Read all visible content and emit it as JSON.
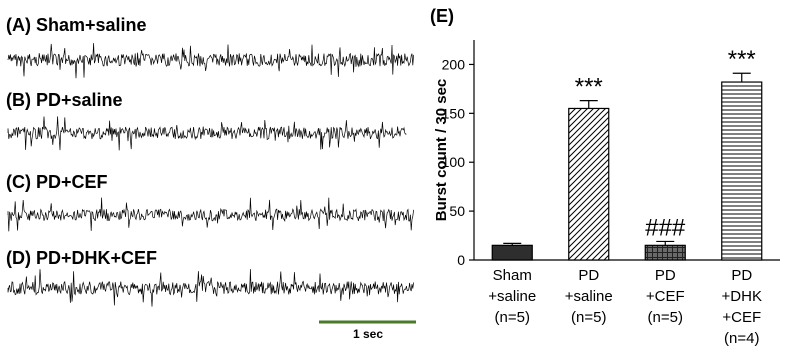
{
  "traces": {
    "panels": [
      {
        "label": "(A) Sham+saline"
      },
      {
        "label": "(B) PD+saline"
      },
      {
        "label": "(C) PD+CEF"
      },
      {
        "label": "(D) PD+DHK+CEF"
      }
    ],
    "scale_bar": {
      "label": "1 sec",
      "color": "#4a7a2a"
    }
  },
  "chart_data": {
    "type": "bar",
    "panel_label": "(E)",
    "title": "",
    "xlabel": "",
    "ylabel": "Burst count / 30 sec",
    "ylim": [
      0,
      225
    ],
    "yticks": [
      0,
      50,
      100,
      150,
      200
    ],
    "categories": [
      {
        "lines": [
          "Sham",
          "+saline",
          "(n=5)"
        ]
      },
      {
        "lines": [
          "PD",
          "+saline",
          "(n=5)"
        ]
      },
      {
        "lines": [
          "PD",
          "+CEF",
          "(n=5)"
        ]
      },
      {
        "lines": [
          "PD",
          "+DHK",
          "+CEF",
          "(n=4)"
        ]
      }
    ],
    "values": [
      15,
      155,
      15,
      182
    ],
    "errors": [
      2,
      8,
      4,
      9
    ],
    "annotations": [
      "",
      "***",
      "###",
      "***"
    ],
    "fills": [
      "solid",
      "diagonal",
      "crosshatch",
      "horizontal"
    ],
    "grid": false
  }
}
